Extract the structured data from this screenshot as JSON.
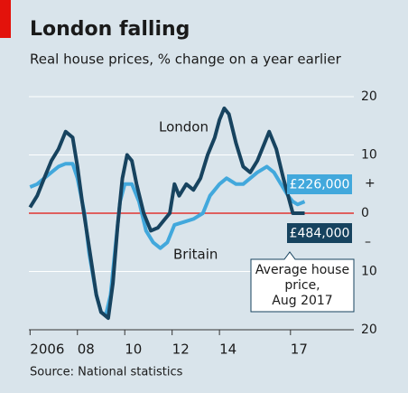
{
  "chart_data": {
    "type": "line",
    "title": "London falling",
    "subtitle": "Real house prices, % change on a year earlier",
    "source": "Source: National statistics",
    "xlim": [
      2005.95,
      2019.6
    ],
    "xticks": [
      2006,
      {
        "value": 2008,
        "label": "08"
      },
      {
        "value": 2010,
        "label": "10"
      },
      {
        "value": 2012,
        "label": "12"
      },
      {
        "value": 2014,
        "label": "14"
      },
      {
        "value": 2017,
        "label": "17"
      }
    ],
    "ylim": [
      -20,
      20
    ],
    "yticks": [
      {
        "value": -20,
        "label": "20"
      },
      {
        "value": -10,
        "label": "10"
      },
      0,
      10,
      20
    ],
    "y_signs": [
      "+",
      "–"
    ],
    "grid": true,
    "series": [
      {
        "name": "London",
        "color": "#17435f",
        "end_label": "£484,000",
        "x": [
          2006.0,
          2006.3,
          2006.6,
          2006.9,
          2007.2,
          2007.5,
          2007.8,
          2008.0,
          2008.2,
          2008.5,
          2008.8,
          2009.0,
          2009.3,
          2009.5,
          2009.7,
          2009.9,
          2010.1,
          2010.3,
          2010.5,
          2010.8,
          2011.1,
          2011.4,
          2011.7,
          2011.9,
          2012.1,
          2012.3,
          2012.6,
          2012.9,
          2013.2,
          2013.5,
          2013.8,
          2014.0,
          2014.2,
          2014.4,
          2014.7,
          2015.0,
          2015.3,
          2015.6,
          2015.9,
          2016.1,
          2016.4,
          2016.7,
          2016.9,
          2017.1,
          2017.3,
          2017.6
        ],
        "values": [
          1,
          3,
          6,
          9,
          11,
          14,
          13,
          8,
          2,
          -6,
          -14,
          -17,
          -18,
          -12,
          -2,
          6,
          10,
          9,
          5,
          0,
          -3,
          -2.5,
          -1,
          0,
          5,
          3,
          5,
          4,
          6,
          10,
          13,
          16,
          18,
          17,
          12,
          8,
          7,
          9,
          12,
          14,
          11,
          6,
          3,
          0,
          0,
          0
        ]
      },
      {
        "name": "Britain",
        "color": "#42a8dc",
        "end_label": "£226,000",
        "x": [
          2006.0,
          2006.3,
          2006.6,
          2006.9,
          2007.2,
          2007.5,
          2007.8,
          2008.0,
          2008.3,
          2008.5,
          2008.8,
          2009.0,
          2009.2,
          2009.4,
          2009.6,
          2009.8,
          2010.0,
          2010.3,
          2010.6,
          2010.9,
          2011.2,
          2011.5,
          2011.8,
          2012.1,
          2012.5,
          2012.9,
          2013.3,
          2013.6,
          2014.0,
          2014.3,
          2014.7,
          2015.0,
          2015.3,
          2015.6,
          2016.0,
          2016.3,
          2016.6,
          2016.9,
          2017.1,
          2017.3,
          2017.6
        ],
        "values": [
          4.5,
          5,
          6,
          7,
          8,
          8.5,
          8.5,
          6,
          0,
          -7,
          -14,
          -17,
          -17.5,
          -14,
          -6,
          2,
          5,
          5,
          2,
          -3,
          -5,
          -6,
          -5,
          -2,
          -1.5,
          -1,
          0,
          3,
          5,
          6,
          5,
          5,
          6,
          7,
          8,
          7,
          5,
          3,
          2,
          1.5,
          2
        ]
      }
    ],
    "annotation": [
      "Average house",
      "price,",
      "Aug 2017"
    ]
  }
}
